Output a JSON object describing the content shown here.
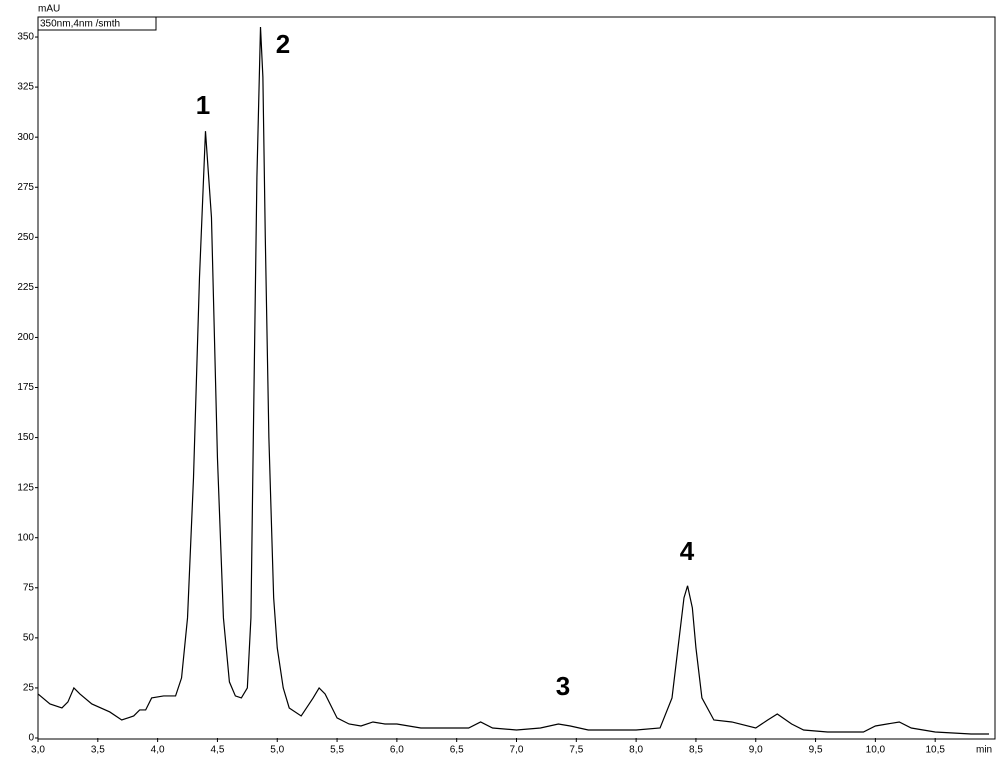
{
  "chart_data": {
    "type": "line",
    "y_label": "mAU",
    "x_label": "min",
    "annotations": [
      "1",
      "2",
      "3",
      "4"
    ],
    "x": [
      3.0,
      3.1,
      3.2,
      3.25,
      3.3,
      3.35,
      3.45,
      3.6,
      3.7,
      3.8,
      3.85,
      3.9,
      3.95,
      4.05,
      4.15,
      4.2,
      4.25,
      4.3,
      4.35,
      4.4,
      4.45,
      4.5,
      4.55,
      4.6,
      4.65,
      4.7,
      4.75,
      4.78,
      4.8,
      4.83,
      4.86,
      4.88,
      4.9,
      4.93,
      4.97,
      5.0,
      5.05,
      5.1,
      5.2,
      5.3,
      5.35,
      5.4,
      5.5,
      5.6,
      5.7,
      5.8,
      5.9,
      6.0,
      6.2,
      6.5,
      6.6,
      6.7,
      6.8,
      7.0,
      7.2,
      7.35,
      7.45,
      7.6,
      8.0,
      8.2,
      8.3,
      8.35,
      8.4,
      8.43,
      8.47,
      8.5,
      8.55,
      8.65,
      8.8,
      9.0,
      9.1,
      9.18,
      9.3,
      9.4,
      9.6,
      9.9,
      10.0,
      10.2,
      10.3,
      10.5,
      10.8,
      10.95
    ],
    "series": [
      {
        "name": "350nm,4nm /smth",
        "color": "#000000",
        "values": [
          22,
          17,
          15,
          18,
          25,
          22,
          17,
          13,
          9,
          11,
          14,
          14,
          20,
          21,
          21,
          30,
          60,
          130,
          230,
          303,
          260,
          140,
          60,
          28,
          21,
          20,
          25,
          60,
          150,
          280,
          355,
          330,
          250,
          150,
          70,
          45,
          25,
          15,
          11,
          20,
          25,
          22,
          10,
          7,
          6,
          8,
          7,
          7,
          5,
          5,
          5,
          8,
          5,
          4,
          5,
          7,
          6,
          4,
          4,
          5,
          20,
          45,
          70,
          76,
          65,
          45,
          20,
          9,
          8,
          5,
          9,
          12,
          7,
          4,
          3,
          3,
          6,
          8,
          5,
          3,
          2,
          2
        ]
      }
    ],
    "xlim": [
      3.0,
      11.0
    ],
    "ylim": [
      0,
      360
    ],
    "xticks": [
      {
        "value": 3.0,
        "label": "3,0"
      },
      {
        "value": 3.5,
        "label": "3,5"
      },
      {
        "value": 4.0,
        "label": "4,0"
      },
      {
        "value": 4.5,
        "label": "4,5"
      },
      {
        "value": 5.0,
        "label": "5,0"
      },
      {
        "value": 5.5,
        "label": "5,5"
      },
      {
        "value": 6.0,
        "label": "6,0"
      },
      {
        "value": 6.5,
        "label": "6,5"
      },
      {
        "value": 7.0,
        "label": "7,0"
      },
      {
        "value": 7.5,
        "label": "7,5"
      },
      {
        "value": 8.0,
        "label": "8,0"
      },
      {
        "value": 8.5,
        "label": "8,5"
      },
      {
        "value": 9.0,
        "label": "9,0"
      },
      {
        "value": 9.5,
        "label": "9,5"
      },
      {
        "value": 10.0,
        "label": "10,0"
      },
      {
        "value": 10.5,
        "label": "10,5"
      }
    ],
    "yticks": [
      0,
      25,
      50,
      75,
      100,
      125,
      150,
      175,
      200,
      225,
      250,
      275,
      300,
      325,
      350
    ]
  }
}
